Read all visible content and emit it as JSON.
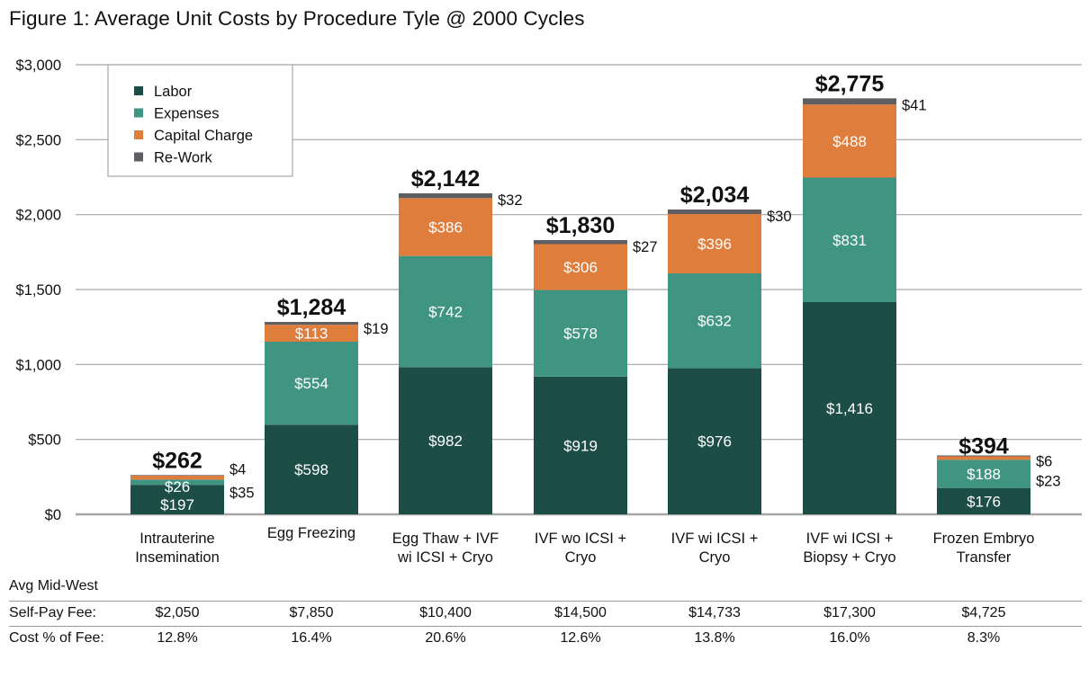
{
  "title": "Figure 1: Average Unit Costs by Procedure Tyle @ 2000 Cycles",
  "colors": {
    "labor": "#1d4d47",
    "expenses": "#3f9482",
    "capital": "#df7d3d",
    "rework": "#5f5f63",
    "grid": "#a6a6a6",
    "text": "#111111"
  },
  "chart_data": {
    "type": "bar",
    "stacked": true,
    "title": "Figure 1: Average Unit Costs by Procedure Tyle @ 2000 Cycles",
    "xlabel": "",
    "ylabel": "",
    "ylim": [
      0,
      3000
    ],
    "yticks": [
      0,
      500,
      1000,
      1500,
      2000,
      2500,
      3000
    ],
    "ytick_labels": [
      "$0",
      "$500",
      "$1,000",
      "$1,500",
      "$2,000",
      "$2,500",
      "$3,000"
    ],
    "grid": true,
    "legend_position": "top-left",
    "categories": [
      [
        "Intrauterine",
        "Insemination"
      ],
      [
        "Egg Freezing"
      ],
      [
        "Egg Thaw + IVF",
        "wi ICSI + Cryo"
      ],
      [
        "IVF wo ICSI +",
        "Cryo"
      ],
      [
        "IVF wi ICSI +",
        "Cryo"
      ],
      [
        "IVF wi ICSI +",
        "Biopsy + Cryo"
      ],
      [
        "Frozen Embryo",
        "Transfer"
      ]
    ],
    "series": [
      {
        "name": "Labor",
        "key": "labor",
        "values": [
          197,
          598,
          982,
          919,
          976,
          1416,
          176
        ],
        "labels": [
          "$197",
          "$598",
          "$982",
          "$919",
          "$976",
          "$1,416",
          "$176"
        ]
      },
      {
        "name": "Expenses",
        "key": "expenses",
        "values": [
          35,
          554,
          742,
          578,
          632,
          831,
          188
        ],
        "labels": [
          "$35",
          "$554",
          "$742",
          "$578",
          "$632",
          "$831",
          "$188"
        ]
      },
      {
        "name": "Capital Charge",
        "key": "capital",
        "values": [
          26,
          113,
          386,
          306,
          396,
          488,
          23
        ],
        "labels": [
          "$26",
          "$113",
          "$386",
          "$306",
          "$396",
          "$488",
          "$23"
        ]
      },
      {
        "name": "Re-Work",
        "key": "rework",
        "values": [
          4,
          19,
          32,
          27,
          30,
          41,
          6
        ],
        "labels": [
          "$4",
          "$19",
          "$32",
          "$27",
          "$30",
          "$41",
          "$6"
        ]
      }
    ],
    "totals": [
      262,
      1284,
      2142,
      1830,
      2034,
      2775,
      394
    ],
    "total_labels": [
      "$262",
      "$1,284",
      "$2,142",
      "$1,830",
      "$2,034",
      "$2,775",
      "$394"
    ]
  },
  "table": {
    "header": "Avg Mid-West",
    "rows": [
      {
        "label": "Self-Pay Fee:",
        "values": [
          "$2,050",
          "$7,850",
          "$10,400",
          "$14,500",
          "$14,733",
          "$17,300",
          "$4,725"
        ]
      },
      {
        "label": "Cost % of Fee:",
        "values": [
          "12.8%",
          "16.4%",
          "20.6%",
          "12.6%",
          "13.8%",
          "16.0%",
          "8.3%"
        ]
      }
    ]
  }
}
